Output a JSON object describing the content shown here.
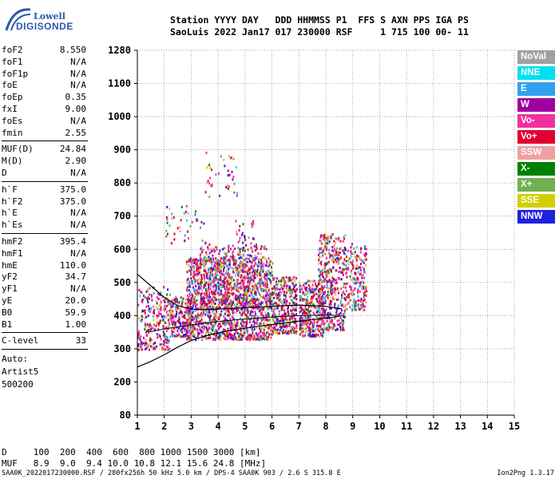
{
  "logo": {
    "line1": "Lowell",
    "line2": "DIGISONDE"
  },
  "header": {
    "line1": "Station YYYY DAY   DDD HHMMSS P1  FFS S AXN PPS IGA PS",
    "line2": "SaoLuis 2022 Jan17 017 230000 RSF     1 715 100 00- 11"
  },
  "params": {
    "group1": [
      {
        "k": "foF2",
        "v": "8.550"
      },
      {
        "k": "foF1",
        "v": "N/A"
      },
      {
        "k": "foF1p",
        "v": "N/A"
      },
      {
        "k": "foE",
        "v": "N/A"
      },
      {
        "k": "foEp",
        "v": "0.35"
      },
      {
        "k": "fxI",
        "v": "9.00"
      },
      {
        "k": "foEs",
        "v": "N/A"
      },
      {
        "k": "fmin",
        "v": "2.55"
      }
    ],
    "group2": [
      {
        "k": "MUF(D)",
        "v": "24.84"
      },
      {
        "k": "M(D)",
        "v": "2.90"
      },
      {
        "k": "D",
        "v": "N/A"
      }
    ],
    "group3": [
      {
        "k": "h`F",
        "v": "375.0"
      },
      {
        "k": "h`F2",
        "v": "375.0"
      },
      {
        "k": "h`E",
        "v": "N/A"
      },
      {
        "k": "h`Es",
        "v": "N/A"
      }
    ],
    "group4": [
      {
        "k": "hmF2",
        "v": "395.4"
      },
      {
        "k": "hmF1",
        "v": "N/A"
      },
      {
        "k": "hmE",
        "v": "110.0"
      },
      {
        "k": "yF2",
        "v": "34.7"
      },
      {
        "k": "yF1",
        "v": "N/A"
      },
      {
        "k": "yE",
        "v": "20.0"
      },
      {
        "k": "B0",
        "v": "59.9"
      },
      {
        "k": "B1",
        "v": "1.00"
      }
    ],
    "group5": [
      {
        "k": "C-level",
        "v": "33"
      }
    ]
  },
  "auto": [
    "Auto:",
    "Artist5",
    "500200"
  ],
  "legend": [
    {
      "label": "NoVal",
      "color": "#a0a0a0"
    },
    {
      "label": "NNE",
      "color": "#00e0f0"
    },
    {
      "label": "E",
      "color": "#30a0f0"
    },
    {
      "label": "W",
      "color": "#a000a0"
    },
    {
      "label": "Vo-",
      "color": "#f030a0"
    },
    {
      "label": "Vo+",
      "color": "#e00030"
    },
    {
      "label": "SSW",
      "color": "#f0a0a0"
    },
    {
      "label": "X-",
      "color": "#008000"
    },
    {
      "label": "X+",
      "color": "#70b050"
    },
    {
      "label": "SSE",
      "color": "#d0d000"
    },
    {
      "label": "NNW",
      "color": "#2020e0"
    }
  ],
  "footer": {
    "line1": "D     100  200  400  600  800 1000 1500 3000 [km]",
    "line2": "MUF   8.9  9.0  9.4 10.0 10.8 12.1 15.6 24.8 [MHz]",
    "line3": "SAA0K_2022017230000.RSF / 280fx256h 50 kHz 5.0 km / DPS-4 SAA0K 903 / 2.6 S 315.8 E",
    "version": "Ion2Png 1.3.17"
  },
  "chart_data": {
    "type": "scatter",
    "xlim": [
      1,
      15
    ],
    "ylim": [
      80,
      1280
    ],
    "xticks": [
      "1",
      "2",
      "3",
      "4",
      "5",
      "6",
      "7",
      "8",
      "9",
      "10",
      "11",
      "12",
      "13",
      "14",
      "15"
    ],
    "yticks": [
      "80",
      "200",
      "300",
      "400",
      "500",
      "600",
      "700",
      "800",
      "900",
      "1000",
      "1100",
      "1280"
    ],
    "ytick_values": [
      80,
      200,
      300,
      400,
      500,
      600,
      700,
      800,
      900,
      1000,
      1100,
      1280
    ],
    "grid": true,
    "clusters": [
      {
        "x": [
          1.0,
          2.2
        ],
        "y": [
          300,
          490
        ],
        "n": 260
      },
      {
        "x": [
          2.2,
          3.0
        ],
        "y": [
          340,
          460
        ],
        "n": 220
      },
      {
        "x": [
          2.8,
          6.0
        ],
        "y": [
          330,
          580
        ],
        "n": 1500
      },
      {
        "x": [
          3.3,
          5.8
        ],
        "y": [
          420,
          620
        ],
        "n": 500
      },
      {
        "x": [
          6.0,
          6.9
        ],
        "y": [
          350,
          520
        ],
        "n": 350
      },
      {
        "x": [
          7.0,
          7.9
        ],
        "y": [
          340,
          510
        ],
        "n": 350
      },
      {
        "x": [
          7.7,
          8.7
        ],
        "y": [
          360,
          650
        ],
        "n": 450
      },
      {
        "x": [
          8.7,
          9.5
        ],
        "y": [
          420,
          620
        ],
        "n": 200
      },
      {
        "x": [
          3.5,
          4.7
        ],
        "y": [
          760,
          900
        ],
        "n": 40
      },
      {
        "x": [
          2.0,
          3.6
        ],
        "y": [
          620,
          740
        ],
        "n": 45
      },
      {
        "x": [
          4.5,
          5.3
        ],
        "y": [
          600,
          690
        ],
        "n": 30
      }
    ],
    "trace_ox": {
      "x": [
        1.0,
        1.5,
        2.0,
        2.5,
        3.0,
        3.5,
        4.0,
        4.5,
        5.0,
        5.5,
        6.0,
        6.5,
        7.0,
        7.5,
        8.0,
        8.5
      ],
      "y": [
        245,
        262,
        282,
        305,
        325,
        338,
        348,
        356,
        362,
        368,
        373,
        378,
        383,
        388,
        392,
        398
      ]
    },
    "trace_x": {
      "x": [
        1.0,
        1.5,
        2.0,
        2.5,
        3.0,
        3.5,
        4.0,
        4.5,
        5.0,
        5.5,
        6.0,
        6.5,
        7.0,
        7.5,
        8.0,
        8.6
      ],
      "y": [
        525,
        490,
        455,
        430,
        420,
        418,
        420,
        422,
        424,
        426,
        428,
        430,
        432,
        430,
        428,
        420
      ]
    },
    "trace_lower": {
      "x": [
        1.4,
        2.0,
        3.0,
        4.0,
        5.0,
        6.0,
        7.0,
        8.0,
        8.6
      ],
      "y": [
        350,
        360,
        372,
        382,
        390,
        396,
        400,
        402,
        400
      ]
    }
  }
}
